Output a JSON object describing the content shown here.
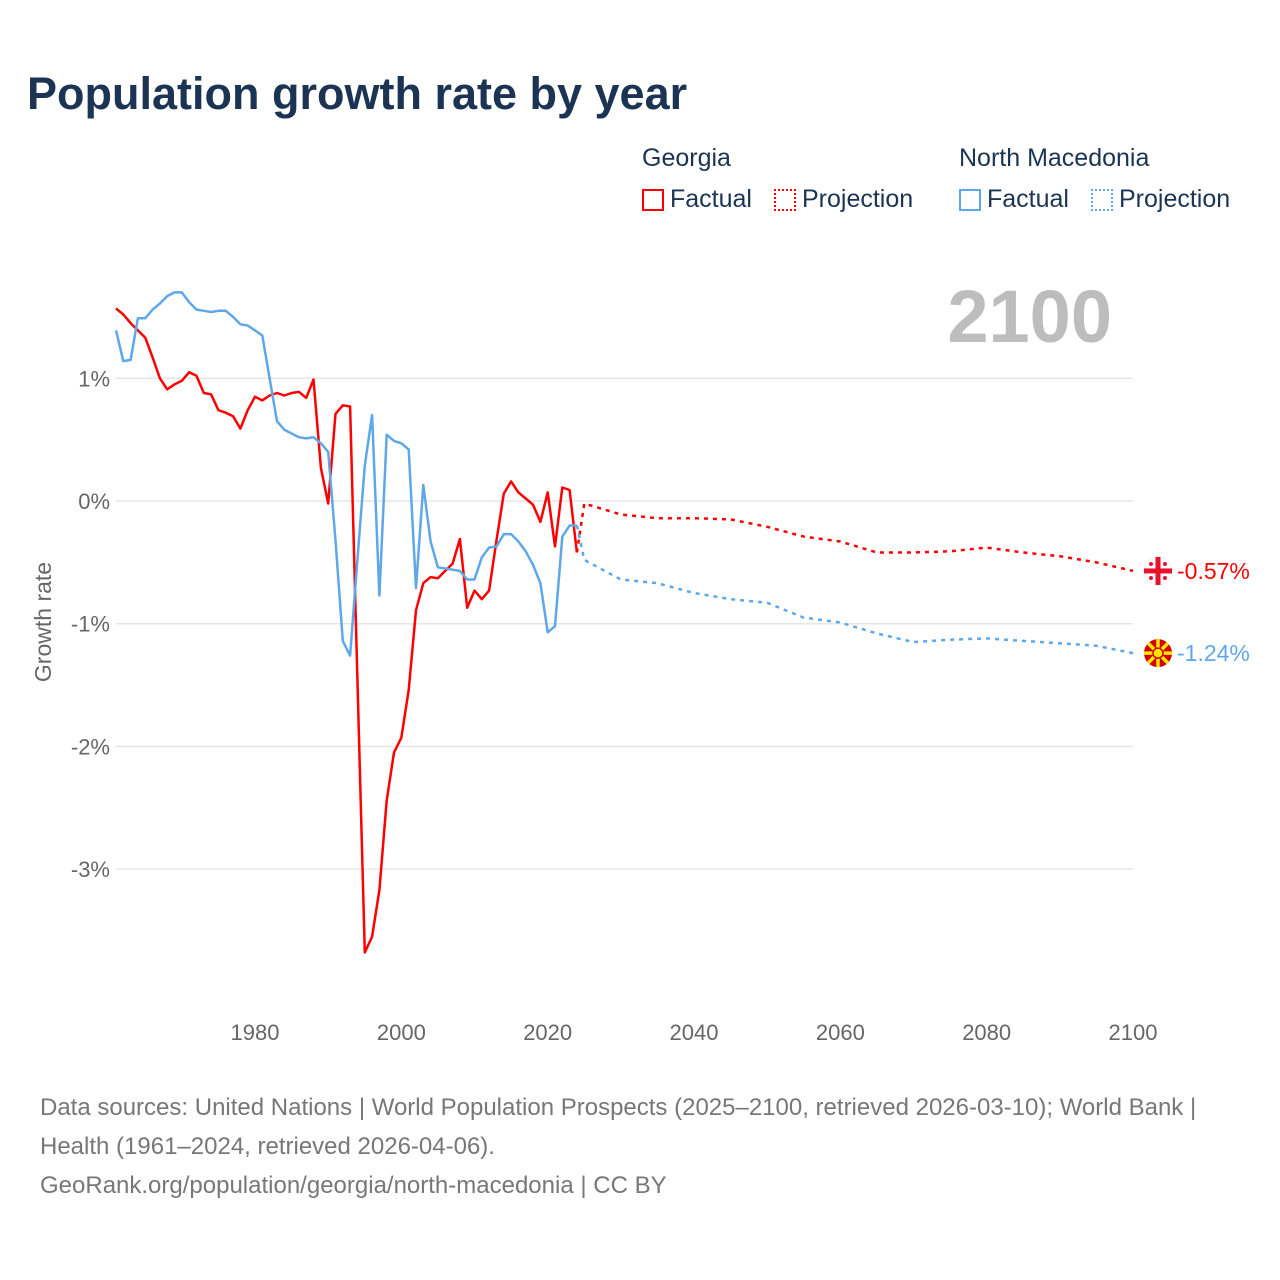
{
  "title": "Population growth rate by year",
  "legend": {
    "groups": [
      {
        "name": "Georgia",
        "factual": "Factual",
        "projection": "Projection",
        "color": "#ff0000"
      },
      {
        "name": "North Macedonia",
        "factual": "Factual",
        "projection": "Projection",
        "color": "#5ea8ea"
      }
    ]
  },
  "year_label": "2100",
  "footer": {
    "sources": "Data sources: United Nations | World Population Prospects (2025–2100, retrieved 2026-03-10); World Bank | Health (1961–2024, retrieved 2026-04-06).",
    "link": "GeoRank.org/population/georgia/north-macedonia | CC BY"
  },
  "chart_data": {
    "type": "line",
    "title": "Population growth rate by year",
    "xlabel": "",
    "ylabel": "Growth rate",
    "xlim": [
      1961,
      2100
    ],
    "ylim": [
      -3.9,
      1.9
    ],
    "xticks": [
      {
        "v": 1980,
        "label": "1980"
      },
      {
        "v": 2000,
        "label": "2000"
      },
      {
        "v": 2020,
        "label": "2020"
      },
      {
        "v": 2040,
        "label": "2040"
      },
      {
        "v": 2060,
        "label": "2060"
      },
      {
        "v": 2080,
        "label": "2080"
      },
      {
        "v": 2100,
        "label": "2100"
      }
    ],
    "yticks": [
      {
        "v": 1,
        "label": "1%"
      },
      {
        "v": 0,
        "label": "0%"
      },
      {
        "v": -1,
        "label": "-1%"
      },
      {
        "v": -2,
        "label": "-2%"
      },
      {
        "v": -3,
        "label": "-3%"
      }
    ],
    "grid": true,
    "legend_position": "top-right",
    "series": [
      {
        "name": "Georgia",
        "kind": "factual",
        "color": "#ff0000",
        "start_year": 1961,
        "values": [
          1.57,
          1.52,
          1.45,
          1.39,
          1.33,
          1.17,
          1.0,
          0.91,
          0.95,
          0.98,
          1.05,
          1.02,
          0.88,
          0.87,
          0.74,
          0.72,
          0.69,
          0.59,
          0.74,
          0.85,
          0.82,
          0.86,
          0.88,
          0.86,
          0.88,
          0.89,
          0.84,
          0.99,
          0.27,
          -0.02,
          0.71,
          0.78,
          0.77,
          -1.45,
          -3.68,
          -3.55,
          -3.17,
          -2.44,
          -2.05,
          -1.93,
          -1.54,
          -0.89,
          -0.67,
          -0.62,
          -0.63,
          -0.57,
          -0.51,
          -0.31,
          -0.87,
          -0.73,
          -0.8,
          -0.73,
          -0.32,
          0.06,
          0.16,
          0.07,
          0.02,
          -0.03,
          -0.17,
          0.07,
          -0.37,
          0.11,
          0.09,
          -0.42
        ]
      },
      {
        "name": "Georgia",
        "kind": "projection",
        "color": "#ff0000",
        "x": [
          2024,
          2025,
          2030,
          2035,
          2040,
          2045,
          2050,
          2055,
          2060,
          2065,
          2070,
          2075,
          2080,
          2085,
          2090,
          2095,
          2100
        ],
        "values": [
          -0.42,
          -0.02,
          -0.11,
          -0.14,
          -0.14,
          -0.15,
          -0.21,
          -0.29,
          -0.33,
          -0.42,
          -0.42,
          -0.41,
          -0.38,
          -0.42,
          -0.45,
          -0.5,
          -0.57
        ]
      },
      {
        "name": "North Macedonia",
        "kind": "factual",
        "color": "#5ea8ea",
        "start_year": 1961,
        "values": [
          1.39,
          1.14,
          1.15,
          1.49,
          1.49,
          1.56,
          1.61,
          1.67,
          1.7,
          1.7,
          1.62,
          1.56,
          1.55,
          1.54,
          1.55,
          1.55,
          1.5,
          1.44,
          1.43,
          1.39,
          1.35,
          1.0,
          0.65,
          0.58,
          0.55,
          0.52,
          0.51,
          0.52,
          0.47,
          0.4,
          -0.32,
          -1.14,
          -1.26,
          -0.48,
          0.29,
          0.7,
          -0.77,
          0.54,
          0.49,
          0.47,
          0.42,
          -0.71,
          0.13,
          -0.33,
          -0.54,
          -0.55,
          -0.56,
          -0.57,
          -0.64,
          -0.64,
          -0.46,
          -0.38,
          -0.37,
          -0.27,
          -0.27,
          -0.33,
          -0.41,
          -0.52,
          -0.67,
          -1.07,
          -1.02,
          -0.29,
          -0.2,
          -0.2
        ]
      },
      {
        "name": "North Macedonia",
        "kind": "projection",
        "color": "#5ea8ea",
        "x": [
          2024,
          2025,
          2030,
          2035,
          2040,
          2045,
          2050,
          2055,
          2060,
          2065,
          2070,
          2075,
          2080,
          2085,
          2090,
          2095,
          2100
        ],
        "values": [
          -0.2,
          -0.48,
          -0.64,
          -0.67,
          -0.75,
          -0.8,
          -0.83,
          -0.95,
          -0.99,
          -1.08,
          -1.15,
          -1.13,
          -1.12,
          -1.14,
          -1.16,
          -1.18,
          -1.24
        ]
      }
    ],
    "end_labels": [
      {
        "name": "Georgia",
        "label": "-0.57%",
        "color": "#ff0000"
      },
      {
        "name": "North Macedonia",
        "label": "-1.24%",
        "color": "#5ea8ea"
      }
    ]
  }
}
